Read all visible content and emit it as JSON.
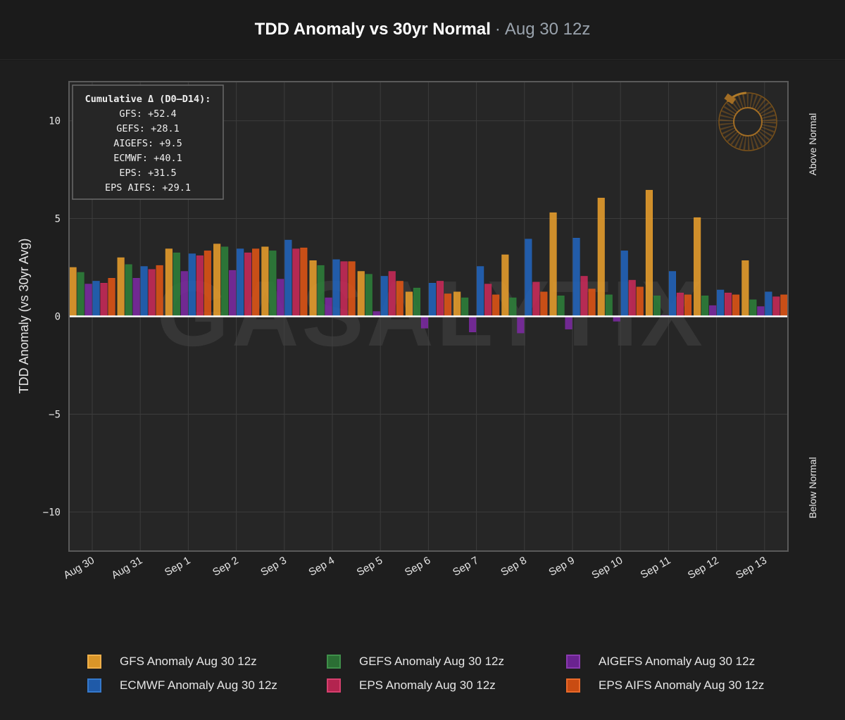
{
  "header": {
    "title": "TDD Anomaly vs 30yr Normal",
    "separator": "·",
    "subtitle": "Aug 30 12z"
  },
  "watermark": "GASALYTIX",
  "summary": {
    "heading": "Cumulative Δ (D0–D14):",
    "lines": [
      "GFS: +52.4",
      "GEFS: +28.1",
      "AIGEFS: +9.5",
      "ECMWF: +40.1",
      "EPS: +31.5",
      "EPS AIFS: +29.1"
    ]
  },
  "side_labels": {
    "above": "Above Normal",
    "below": "Below Normal"
  },
  "chart_data": {
    "type": "bar",
    "ylabel": "TDD Anomaly (vs 30yr Avg)",
    "ylim": [
      -12,
      12
    ],
    "yticks": [
      10,
      5,
      0,
      -5,
      -10
    ],
    "ytick_labels": [
      "10",
      "5",
      "0",
      "−5",
      "−10"
    ],
    "grid": true,
    "legend_position": "bottom",
    "categories": [
      "Aug 30",
      "Aug 31",
      "Sep 1",
      "Sep 2",
      "Sep 3",
      "Sep 4",
      "Sep 5",
      "Sep 6",
      "Sep 7",
      "Sep 8",
      "Sep 9",
      "Sep 10",
      "Sep 11",
      "Sep 12",
      "Sep 13"
    ],
    "series": [
      {
        "name": "GFS Anomaly Aug 30 12z",
        "color": "#e39b2c",
        "values": [
          2.5,
          3.0,
          3.45,
          3.7,
          3.55,
          2.85,
          2.3,
          1.25,
          1.25,
          3.15,
          5.3,
          6.05,
          6.45,
          5.05,
          2.85
        ]
      },
      {
        "name": "GEFS Anomaly Aug 30 12z",
        "color": "#2e7d3a",
        "values": [
          2.25,
          2.65,
          3.25,
          3.55,
          3.35,
          2.6,
          2.15,
          1.45,
          0.95,
          0.95,
          1.05,
          1.1,
          1.05,
          1.05,
          0.85
        ]
      },
      {
        "name": "AIGEFS Anomaly Aug 30 12z",
        "color": "#7a2a9e",
        "values": [
          1.65,
          1.95,
          2.3,
          2.35,
          1.9,
          0.95,
          0.25,
          -0.6,
          -0.8,
          -0.85,
          -0.65,
          -0.25,
          0.05,
          0.55,
          0.5
        ]
      },
      {
        "name": "ECMWF Anomaly Aug 30 12z",
        "color": "#2263b8",
        "values": [
          1.8,
          2.55,
          3.2,
          3.45,
          3.9,
          2.9,
          2.05,
          1.7,
          2.55,
          3.95,
          4.0,
          3.35,
          2.3,
          1.35,
          1.25
        ]
      },
      {
        "name": "EPS Anomaly Aug 30 12z",
        "color": "#c42a58",
        "values": [
          1.7,
          2.4,
          3.1,
          3.25,
          3.45,
          2.8,
          2.3,
          1.8,
          1.65,
          1.75,
          2.05,
          1.85,
          1.2,
          1.2,
          1.0
        ]
      },
      {
        "name": "EPS AIFS Anomaly Aug 30 12z",
        "color": "#db5416",
        "values": [
          1.95,
          2.6,
          3.35,
          3.45,
          3.5,
          2.8,
          1.8,
          1.15,
          1.1,
          1.25,
          1.4,
          1.5,
          1.1,
          1.1,
          1.1
        ]
      }
    ]
  }
}
